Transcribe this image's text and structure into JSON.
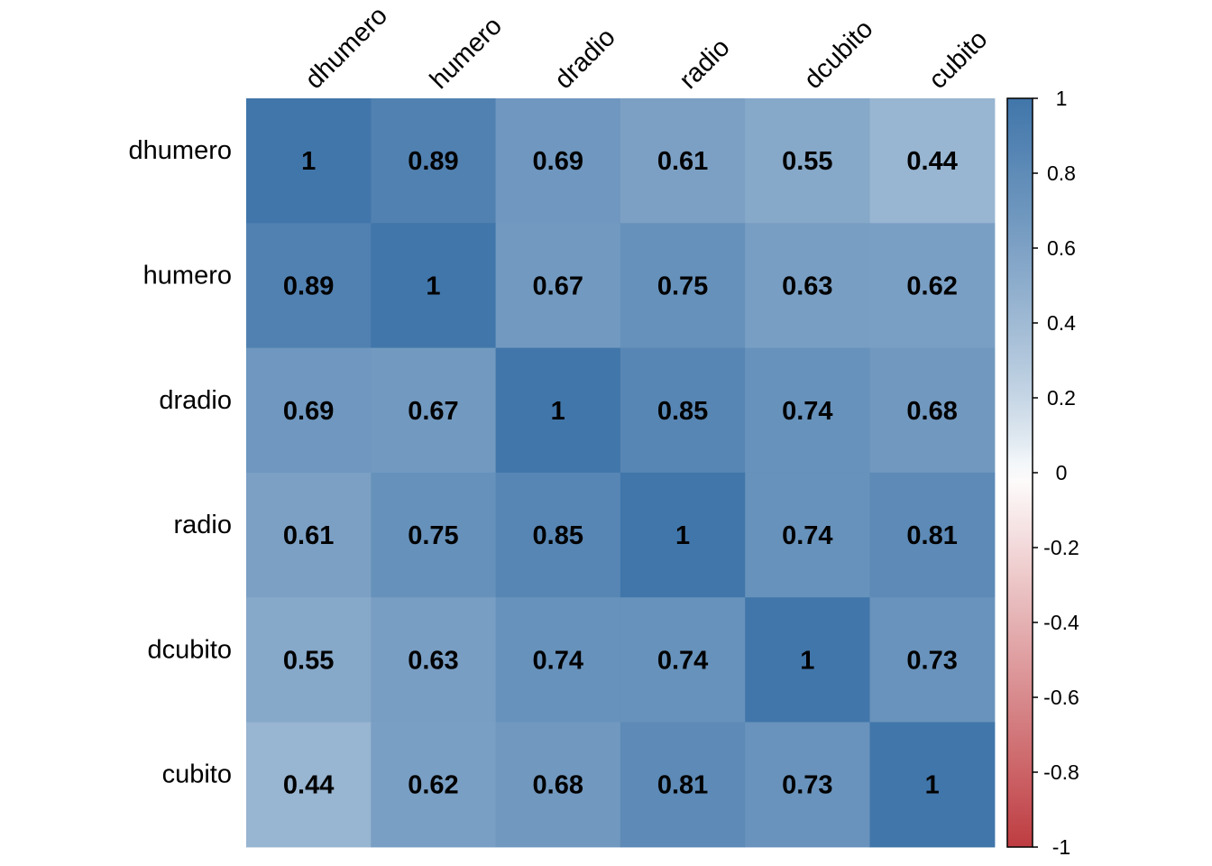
{
  "chart_data": {
    "type": "heatmap",
    "variables": [
      "dhumero",
      "humero",
      "dradio",
      "radio",
      "dcubito",
      "cubito"
    ],
    "matrix": [
      [
        1,
        0.89,
        0.69,
        0.61,
        0.55,
        0.44
      ],
      [
        0.89,
        1,
        0.67,
        0.75,
        0.63,
        0.62
      ],
      [
        0.69,
        0.67,
        1,
        0.85,
        0.74,
        0.68
      ],
      [
        0.61,
        0.75,
        0.85,
        1,
        0.74,
        0.81
      ],
      [
        0.55,
        0.63,
        0.74,
        0.74,
        1,
        0.73
      ],
      [
        0.44,
        0.62,
        0.68,
        0.81,
        0.73,
        1
      ]
    ],
    "value_range": [
      -1,
      1
    ],
    "colorbar": {
      "ticks": [
        1,
        0.8,
        0.6,
        0.4,
        0.2,
        0,
        -0.2,
        -0.4,
        -0.6,
        -0.8,
        -1
      ],
      "tick_labels": [
        "1",
        "0.8",
        "0.6",
        "0.4",
        "0.2",
        "0",
        "-0.2",
        "-0.4",
        "-0.6",
        "-0.8",
        "-1"
      ],
      "colors": [
        "#67001F",
        "#B2182B",
        "#D6604D",
        "#F4A582",
        "#FDDBC7",
        "#FFFFFF",
        "#D1E5F0",
        "#92C5DE",
        "#4393C3",
        "#2166AC",
        "#053061"
      ]
    },
    "legend_position": "right",
    "grid": false,
    "column_labels_position": "top",
    "column_label_rotation_deg": -45
  }
}
